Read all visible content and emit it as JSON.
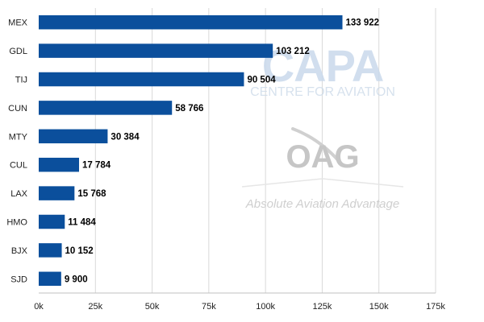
{
  "chart_data": {
    "type": "bar",
    "orientation": "horizontal",
    "categories": [
      "MEX",
      "GDL",
      "TIJ",
      "CUN",
      "MTY",
      "CUL",
      "LAX",
      "HMO",
      "BJX",
      "SJD"
    ],
    "values": [
      133922,
      103212,
      90504,
      58766,
      30384,
      17784,
      15768,
      11484,
      10152,
      9900
    ],
    "data_labels": [
      "133 922",
      "103 212",
      "90 504",
      "58 766",
      "30 384",
      "17 784",
      "15 768",
      "11 484",
      "10 152",
      "9 900"
    ],
    "xlim": [
      0,
      175000
    ],
    "x_ticks": [
      0,
      25000,
      50000,
      75000,
      100000,
      125000,
      150000,
      175000
    ],
    "x_tick_labels": [
      "0k",
      "25k",
      "50k",
      "75k",
      "100k",
      "125k",
      "150k",
      "175k"
    ],
    "grid": "vertical",
    "bar_color": "#0b4f9c"
  },
  "watermarks": {
    "capa_logo": "CAPA",
    "capa_sub": "CENTRE FOR AVIATION",
    "oag_logo": "OAG",
    "oag_tagline": "Absolute Aviation Advantage"
  }
}
